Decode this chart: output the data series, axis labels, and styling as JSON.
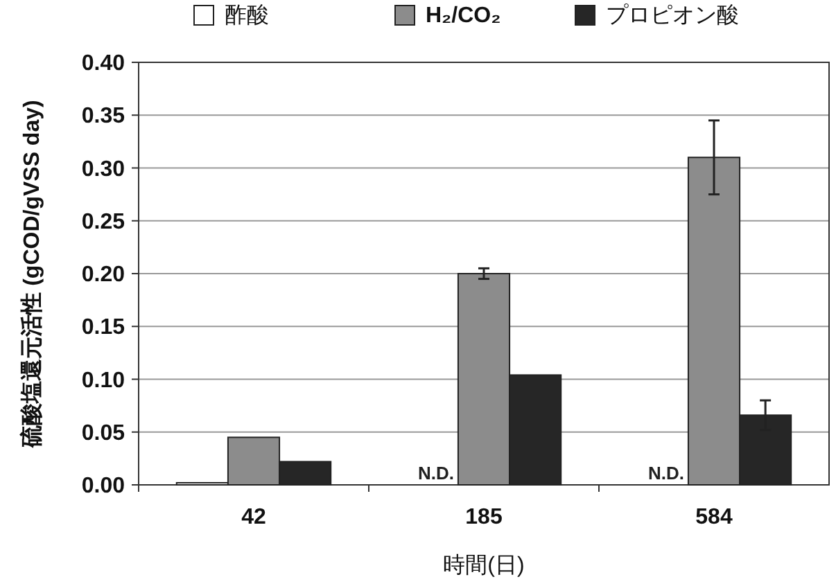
{
  "chart_data": {
    "type": "bar",
    "xlabel": "時間(日)",
    "ylabel": "硫酸塩還元活性 (gCOD/gVSS day)",
    "categories": [
      "42",
      "185",
      "584"
    ],
    "series": [
      {
        "name": "酢酸",
        "color": "#ffffff",
        "values": [
          0.002,
          null,
          null
        ]
      },
      {
        "name": "H₂/CO₂",
        "color": "#8c8c8c",
        "values": [
          0.045,
          0.2,
          0.31
        ],
        "errors": [
          null,
          0.005,
          0.035
        ]
      },
      {
        "name": "プロピオン酸",
        "color": "#262626",
        "values": [
          0.022,
          0.104,
          0.066
        ],
        "errors": [
          null,
          null,
          0.014
        ]
      }
    ],
    "ylim": [
      0,
      0.4
    ],
    "yticks": [
      {
        "value": 0,
        "label": "0.00"
      },
      {
        "value": 0.05,
        "label": "0.05"
      },
      {
        "value": 0.1,
        "label": "0.10"
      },
      {
        "value": 0.15,
        "label": "0.15"
      },
      {
        "value": 0.2,
        "label": "0.20"
      },
      {
        "value": 0.25,
        "label": "0.25"
      },
      {
        "value": 0.3,
        "label": "0.30"
      },
      {
        "value": 0.35,
        "label": "0.35"
      },
      {
        "value": 0.4,
        "label": "0.40"
      }
    ],
    "annotations": [
      {
        "text": "N.D.",
        "x": "185",
        "y": 0
      },
      {
        "text": "N.D.",
        "x": "584",
        "y": 0
      }
    ],
    "grid": "y",
    "legend": "top"
  }
}
